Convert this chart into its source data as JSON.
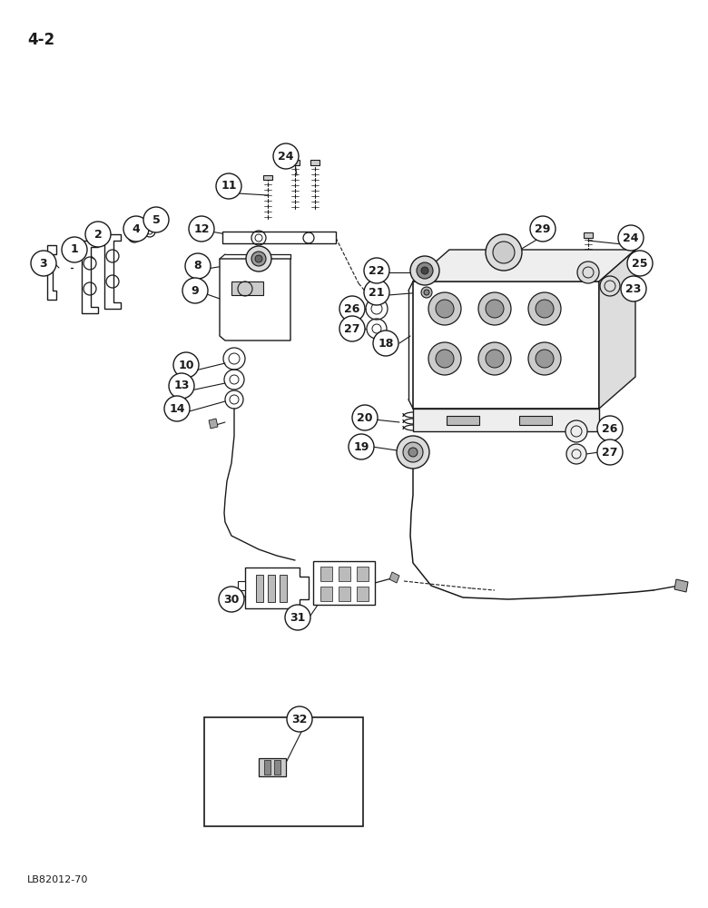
{
  "page_label": "4-2",
  "bottom_label": "LB82012-70",
  "bg": "#ffffff",
  "lc": "#1a1a1a",
  "figsize": [
    7.8,
    10.0
  ],
  "dpi": 100
}
